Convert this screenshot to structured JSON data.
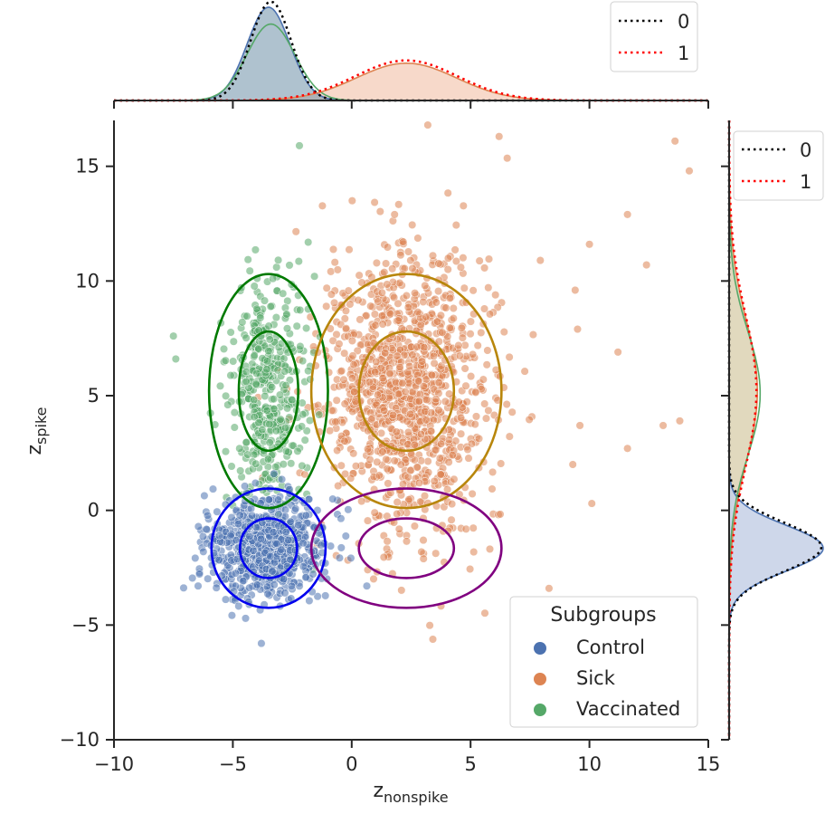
{
  "chart_data": {
    "type": "scatter",
    "subtype": "jointplot-with-marginal-kde",
    "xlabel_base": "z",
    "xlabel_sub": "nonspike",
    "ylabel_base": "z",
    "ylabel_sub": "spike",
    "xlim": [
      -10,
      15
    ],
    "ylim": [
      -10,
      17
    ],
    "x_ticks": [
      -10,
      -5,
      0,
      5,
      10,
      15
    ],
    "x_tick_labels": [
      "−10",
      "−5",
      "0",
      "5",
      "10",
      "15"
    ],
    "y_ticks": [
      -10,
      -5,
      0,
      5,
      10,
      15
    ],
    "y_tick_labels": [
      "−10",
      "−5",
      "0",
      "5",
      "10",
      "15"
    ],
    "legend": {
      "title": "Subgroups",
      "placement": "lower-right",
      "entries": [
        {
          "label": "Control",
          "color": "#4c72b0"
        },
        {
          "label": "Sick",
          "color": "#dd8452"
        },
        {
          "label": "Vaccinated",
          "color": "#55a868"
        }
      ]
    },
    "series": [
      {
        "name": "Control",
        "color": "#4c72b0",
        "center": [
          -3.5,
          -1.6
        ],
        "std": [
          1.2,
          1.1
        ],
        "n": 750
      },
      {
        "name": "Sick",
        "color": "#dd8452",
        "center": [
          2.3,
          5.2
        ],
        "std": [
          1.8,
          3.0
        ],
        "n": 1150
      },
      {
        "name": "Vaccinated",
        "color": "#55a868",
        "center": [
          -3.5,
          5.2
        ],
        "std": [
          0.8,
          2.6
        ],
        "n": 420
      }
    ],
    "outlier_points": [
      {
        "x": 13.6,
        "y": 16.1
      },
      {
        "x": 14.2,
        "y": 14.8
      },
      {
        "x": 11.6,
        "y": 12.9
      },
      {
        "x": 12.4,
        "y": 10.7
      },
      {
        "x": 10.0,
        "y": 11.6
      },
      {
        "x": 11.2,
        "y": 6.9
      },
      {
        "x": 11.6,
        "y": 2.7
      },
      {
        "x": 13.1,
        "y": 3.7
      },
      {
        "x": 13.8,
        "y": 3.9
      },
      {
        "x": 10.1,
        "y": 0.3
      },
      {
        "x": 8.3,
        "y": -3.4
      },
      {
        "x": -3.8,
        "y": -5.8
      },
      {
        "x": 3.2,
        "y": 16.8
      },
      {
        "x": 6.2,
        "y": 16.3
      },
      {
        "x": -7.5,
        "y": 7.6
      },
      {
        "x": -7.4,
        "y": 6.6
      },
      {
        "x": -2.2,
        "y": 15.9
      },
      {
        "x": 9.6,
        "y": 3.7
      },
      {
        "x": 9.3,
        "y": 2.0
      },
      {
        "x": 9.5,
        "y": 7.9
      },
      {
        "x": 9.4,
        "y": 9.6
      }
    ],
    "gaussian_ellipses": [
      {
        "name": "vaccinated-component",
        "color": "#007a00",
        "center": [
          -3.5,
          5.2
        ],
        "semi_axes_inner": [
          1.25,
          2.6
        ],
        "semi_axes_outer": [
          2.5,
          5.1
        ]
      },
      {
        "name": "sick-component",
        "color": "#b8860b",
        "center": [
          2.3,
          5.2
        ],
        "semi_axes_inner": [
          2.0,
          2.6
        ],
        "semi_axes_outer": [
          4.0,
          5.1
        ]
      },
      {
        "name": "control-component",
        "color": "#0000ee",
        "center": [
          -3.5,
          -1.65
        ],
        "semi_axes_inner": [
          1.2,
          1.3
        ],
        "semi_axes_outer": [
          2.4,
          2.6
        ]
      },
      {
        "name": "sick-low-component",
        "color": "#800080",
        "center": [
          2.3,
          -1.65
        ],
        "semi_axes_inner": [
          2.0,
          1.3
        ],
        "semi_axes_outer": [
          4.0,
          2.6
        ]
      }
    ],
    "marginal_x": {
      "kde_components": [
        {
          "name": "Control",
          "color": "#4c72b0",
          "fill": "#6e8fa8",
          "peak_x": -3.5,
          "std": 0.9,
          "peak_height": 1.0
        },
        {
          "name": "Vaccinated",
          "color": "#55a868",
          "fill": "#6e8fa8",
          "peak_x": -3.4,
          "std": 1.0,
          "peak_height": 0.82
        },
        {
          "name": "Sick",
          "color": "#dd8452",
          "fill": "#f4c9b3",
          "peak_x": 2.3,
          "std": 2.1,
          "peak_height": 0.4
        }
      ],
      "reference_lines": [
        {
          "label": "0",
          "color": "#000000",
          "peak_x": -3.4,
          "std": 0.85,
          "peak_height": 1.06
        },
        {
          "label": "1",
          "color": "#ff0000",
          "peak_x": 2.3,
          "std": 2.15,
          "peak_height": 0.43
        }
      ],
      "legend_entries": [
        "0",
        "1"
      ]
    },
    "marginal_y": {
      "kde_components": [
        {
          "name": "Control",
          "color": "#4c72b0",
          "fill": "#c9d3e8",
          "peak_y": -1.65,
          "std": 1.0,
          "peak_height": 1.0
        },
        {
          "name": "Sick",
          "color": "#dd8452",
          "fill": "#d9cfae",
          "peak_y": 5.2,
          "std": 3.1,
          "peak_height": 0.3
        },
        {
          "name": "Vaccinated",
          "color": "#55a868",
          "fill": "#d9cfae",
          "peak_y": 5.1,
          "std": 2.7,
          "peak_height": 0.33
        }
      ],
      "reference_lines": [
        {
          "label": "0",
          "color": "#000000",
          "peak_y": -1.6,
          "std": 1.05,
          "peak_height": 0.98
        },
        {
          "label": "1",
          "color": "#ff0000",
          "peak_y": 5.2,
          "std": 3.3,
          "peak_height": 0.29
        }
      ],
      "legend_entries": [
        "0",
        "1"
      ]
    }
  }
}
